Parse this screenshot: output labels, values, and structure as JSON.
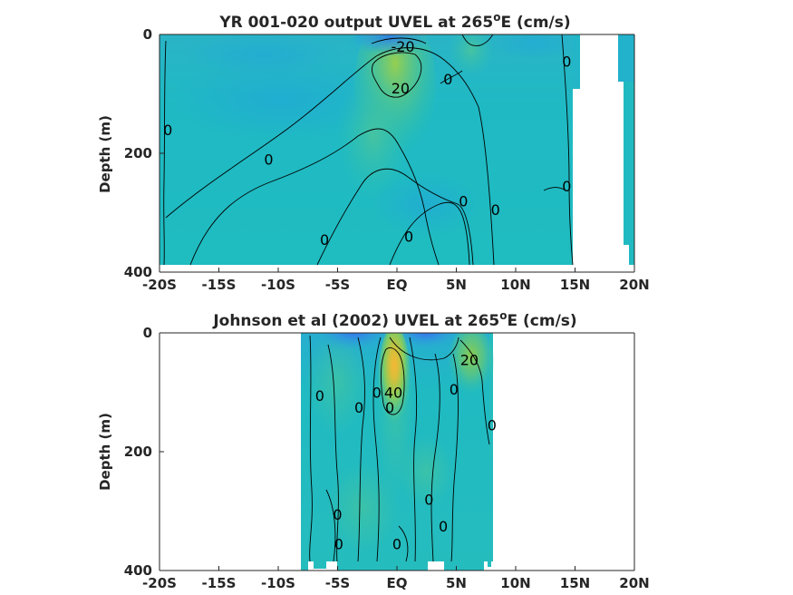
{
  "chart_data": [
    {
      "type": "heatmap",
      "title": "YR 001-020 output UVEL at 265",
      "title_sup": "o",
      "title_tail": "E (cm/s)",
      "ylabel": "Depth (m)",
      "x_ticks": [
        "-20S",
        "-15S",
        "-10S",
        "-5S",
        "EQ",
        "5N",
        "10N",
        "15N",
        "20N"
      ],
      "x_values": [
        -20,
        -15,
        -10,
        -5,
        0,
        5,
        10,
        15,
        20
      ],
      "y_ticks": [
        "0",
        "200",
        "400"
      ],
      "y_values": [
        0,
        200,
        400
      ],
      "xlim": [
        -20,
        20
      ],
      "ylim": [
        400,
        0
      ],
      "colormap": "parula",
      "contour_labels": [
        {
          "text": "-20",
          "lon": 0.5,
          "depth": 20
        },
        {
          "text": "20",
          "lon": 0.3,
          "depth": 90
        },
        {
          "text": "0",
          "lon": -19.3,
          "depth": 160
        },
        {
          "text": "0",
          "lon": -10.8,
          "depth": 210
        },
        {
          "text": "0",
          "lon": 4.3,
          "depth": 75
        },
        {
          "text": "0",
          "lon": 14.3,
          "depth": 45
        },
        {
          "text": "0",
          "lon": 14.3,
          "depth": 255
        },
        {
          "text": "0",
          "lon": 5.6,
          "depth": 280
        },
        {
          "text": "0",
          "lon": 8.3,
          "depth": 295
        },
        {
          "text": "0",
          "lon": -6.1,
          "depth": 345
        },
        {
          "text": "0",
          "lon": 1.0,
          "depth": 340
        }
      ]
    },
    {
      "type": "heatmap",
      "title": "Johnson et al (2002) UVEL at 265",
      "title_sup": "o",
      "title_tail": "E (cm/s)",
      "ylabel": "Depth (m)",
      "x_ticks": [
        "-20S",
        "-15S",
        "-10S",
        "-5S",
        "EQ",
        "5N",
        "10N",
        "15N",
        "20N"
      ],
      "x_values": [
        -20,
        -15,
        -10,
        -5,
        0,
        5,
        10,
        15,
        20
      ],
      "y_ticks": [
        "0",
        "200",
        "400"
      ],
      "y_values": [
        0,
        200,
        400
      ],
      "xlim": [
        -20,
        20
      ],
      "ylim": [
        400,
        0
      ],
      "data_extent_lon": [
        -8,
        8
      ],
      "colormap": "parula",
      "contour_labels": [
        {
          "text": "20",
          "lon": 6.1,
          "depth": 45
        },
        {
          "text": "40",
          "lon": -0.3,
          "depth": 100
        },
        {
          "text": "0",
          "lon": -6.5,
          "depth": 105
        },
        {
          "text": "0",
          "lon": -1.7,
          "depth": 100
        },
        {
          "text": "0",
          "lon": -3.2,
          "depth": 125
        },
        {
          "text": "0",
          "lon": -0.6,
          "depth": 125
        },
        {
          "text": "0",
          "lon": 4.8,
          "depth": 95
        },
        {
          "text": "0",
          "lon": 8.0,
          "depth": 155
        },
        {
          "text": "0",
          "lon": 2.7,
          "depth": 280
        },
        {
          "text": "0",
          "lon": 3.9,
          "depth": 325
        },
        {
          "text": "0",
          "lon": -5.0,
          "depth": 305
        },
        {
          "text": "0",
          "lon": -4.9,
          "depth": 355
        },
        {
          "text": "0",
          "lon": 0.0,
          "depth": 355
        }
      ]
    }
  ]
}
